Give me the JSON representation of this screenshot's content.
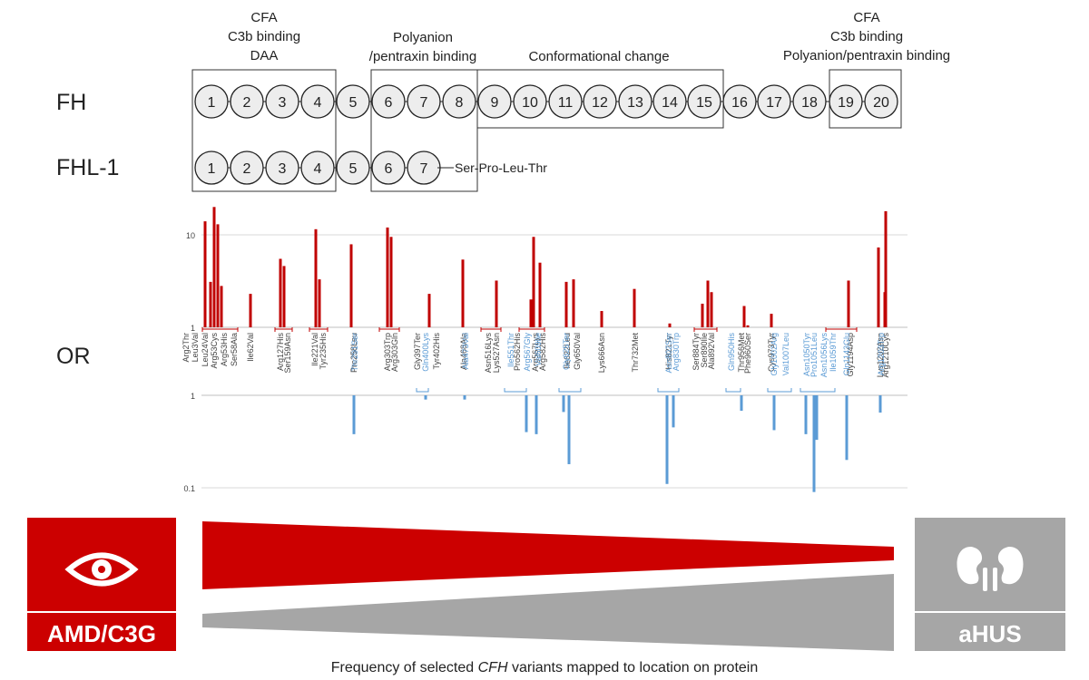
{
  "domain_labels": {
    "left_group": [
      "CFA",
      "C3b binding",
      "DAA"
    ],
    "middle_left_group": [
      "Polyanion",
      "/pentraxin binding"
    ],
    "middle_group": "Conformational change",
    "right_group": [
      "CFA",
      "C3b binding",
      "Polyanion/pentraxin binding"
    ]
  },
  "rows": {
    "fh_label": "FH",
    "fhl1_label": "FHL-1",
    "or_label": "OR",
    "fh_domains": [
      "1",
      "2",
      "3",
      "4",
      "5",
      "6",
      "7",
      "8",
      "9",
      "10",
      "11",
      "12",
      "13",
      "14",
      "15",
      "16",
      "17",
      "18",
      "19",
      "20"
    ],
    "fhl1_domains": [
      "1",
      "2",
      "3",
      "4",
      "5",
      "6",
      "7"
    ],
    "fhl1_tail": "Ser-Pro-Leu-Thr"
  },
  "chart_data": {
    "type": "bar",
    "scale": "log",
    "ylim": [
      0.08,
      20
    ],
    "upper_ticks": [
      "1",
      "10"
    ],
    "lower_ticks": [
      "1",
      "0.1"
    ],
    "risk_color": "#c00000",
    "protective_color": "#5b9bd5",
    "risk_variants": [
      {
        "label": "Arg2Thr",
        "values": [
          14
        ]
      },
      {
        "label": "Leu3Val",
        "values": [
          3.1,
          20
        ]
      },
      {
        "label": "Leu24Val",
        "values": [
          13
        ]
      },
      {
        "label": "Arg53Cys",
        "values": [
          2.8
        ]
      },
      {
        "label": "Arg53His",
        "values": []
      },
      {
        "label": "Ser58Ala",
        "values": []
      },
      {
        "label": "Ile62Val",
        "values": [
          2.3
        ]
      },
      {
        "label": "Arg127His",
        "values": [
          5.5
        ]
      },
      {
        "label": "Ser159Asn",
        "values": [
          4.6
        ]
      },
      {
        "label": "Ile221Val",
        "values": [
          11.5
        ]
      },
      {
        "label": "Tyr235His",
        "values": [
          3.3
        ]
      },
      {
        "label": "Pro258Leu",
        "values": [
          7.9
        ]
      },
      {
        "label": "Arg303Trp",
        "values": [
          12
        ]
      },
      {
        "label": "Arg303Gln",
        "values": [
          9.5
        ]
      },
      {
        "label": "Gly397Ter",
        "values": []
      },
      {
        "label": "Tyr402His",
        "values": [
          2.3
        ]
      },
      {
        "label": "Ala468Ala",
        "values": [
          5.4
        ]
      },
      {
        "label": "Asn516Lys",
        "values": []
      },
      {
        "label": "Lys527Asn",
        "values": [
          2.0,
          3.2
        ]
      },
      {
        "label": "Pro562His",
        "values": [
          9.5
        ]
      },
      {
        "label": "Arg567Lys",
        "values": [
          5.0
        ]
      },
      {
        "label": "Arg582His",
        "values": [
          3.1
        ]
      },
      {
        "label": "Ile622Leu",
        "values": [
          3.3
        ]
      },
      {
        "label": "Gly650Val",
        "values": [
          1.5
        ]
      },
      {
        "label": "Lys666Asn",
        "values": [
          2.6
        ]
      },
      {
        "label": "Thr732Met",
        "values": [
          1.1
        ]
      },
      {
        "label": "His821Tyr",
        "values": [
          1.8
        ]
      },
      {
        "label": "Ser884Tyr",
        "values": [
          3.2
        ]
      },
      {
        "label": "Ser890Ile",
        "values": [
          2.4
        ]
      },
      {
        "label": "Ala892Val",
        "values": [
          1.7
        ]
      },
      {
        "label": "Thr956Met",
        "values": [
          1.05
        ]
      },
      {
        "label": "Phe960Ser",
        "values": [
          1.4
        ]
      },
      {
        "label": "Cys973Tyr",
        "values": [
          3.2
        ]
      },
      {
        "label": "Gly1194Asp",
        "values": [
          7.3
        ]
      },
      {
        "label": "Lys1202Asn",
        "values": [
          2.4
        ]
      },
      {
        "label": "Arg1210Cys",
        "values": [
          18
        ]
      }
    ],
    "protective_variants": [
      {
        "label": "Thr291Ser",
        "values": [
          0.38
        ]
      },
      {
        "label": "Gln400Lys",
        "values": [
          0.9
        ]
      },
      {
        "label": "Ala473Val",
        "values": [
          0.9
        ]
      },
      {
        "label": "Ile551Thr",
        "values": []
      },
      {
        "label": "Arg567Gly",
        "values": [
          0.4
        ]
      },
      {
        "label": "Val609Ile",
        "values": [
          0.38
        ]
      },
      {
        "label": "Gly625Ter",
        "values": [
          0.66,
          0.18
        ]
      },
      {
        "label": "Asn802Ser",
        "values": [
          0.11
        ]
      },
      {
        "label": "Arg830Trp",
        "values": [
          0.45
        ]
      },
      {
        "label": "Gln950His",
        "values": [
          0.68
        ]
      },
      {
        "label": "Gly1002Arg",
        "values": [
          0.42
        ]
      },
      {
        "label": "Val1007Leu",
        "values": []
      },
      {
        "label": "Asn1050Tyr",
        "values": [
          0.38
        ]
      },
      {
        "label": "Pro1051Leu",
        "values": [
          0.09
        ]
      },
      {
        "label": "Asn1056Lys",
        "values": [
          0.33
        ]
      },
      {
        "label": "Ile1059Thr",
        "values": []
      },
      {
        "label": "Gln1143Glu",
        "values": [
          0.2
        ]
      },
      {
        "label": "Arg1203Trp",
        "values": [
          0.65
        ]
      }
    ]
  },
  "phenotypes": {
    "left_label": "AMD/C3G",
    "right_label": "aHUS",
    "left_icon": "eye-icon",
    "right_icon": "kidney-icon",
    "left_color": "#cc0000",
    "right_color": "#a6a6a6"
  },
  "caption": {
    "prefix": "Frequency of selected ",
    "gene": "CFH",
    "suffix": " variants mapped to location on protein"
  }
}
